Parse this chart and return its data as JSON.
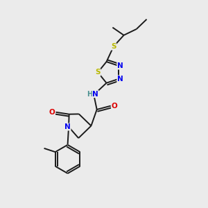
{
  "bg_color": "#ebebeb",
  "bond_color": "#1a1a1a",
  "atom_colors": {
    "S": "#b8b800",
    "N": "#0000ee",
    "O": "#dd0000",
    "H": "#4a9090",
    "C": "#1a1a1a"
  },
  "lw": 1.4
}
